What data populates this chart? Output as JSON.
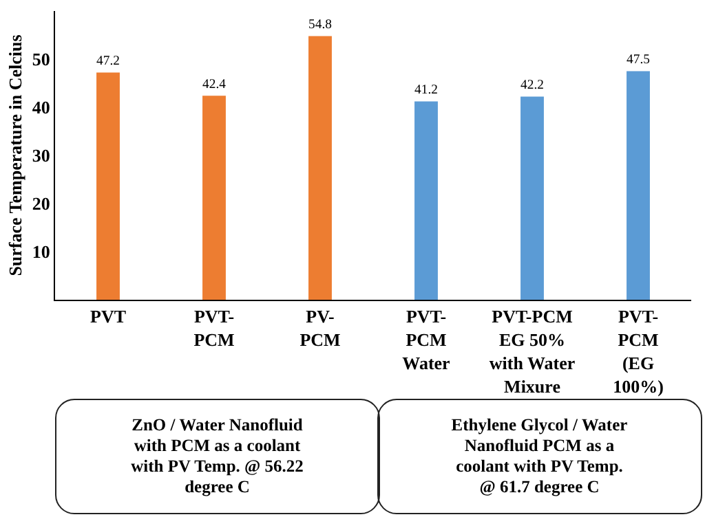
{
  "chart_data": {
    "type": "bar",
    "ylabel": "Surface Temperature in Celcius",
    "categories": [
      "PVT",
      "PVT-\nPCM",
      "PV-\nPCM",
      "PVT-\nPCM\nWater",
      "PVT-PCM\nEG 50%\nwith Water\nMixure",
      "PVT-\nPCM\n(EG\n100%)"
    ],
    "values": [
      47.2,
      42.4,
      54.8,
      41.2,
      42.2,
      47.5
    ],
    "colors": [
      "#ed7d31",
      "#ed7d31",
      "#ed7d31",
      "#5b9bd5",
      "#5b9bd5",
      "#5b9bd5"
    ],
    "ylim": [
      0,
      60
    ],
    "yticks": [
      10,
      20,
      30,
      40,
      50
    ],
    "grid": false,
    "data_labels": true,
    "annotations": [
      "ZnO / Water Nanofluid\nwith PCM as a coolant\nwith PV Temp. @ 56.22\ndegree C",
      "Ethylene Glycol / Water\nNanofluid PCM as a\ncoolant with PV Temp.\n@ 61.7 degree C"
    ]
  }
}
